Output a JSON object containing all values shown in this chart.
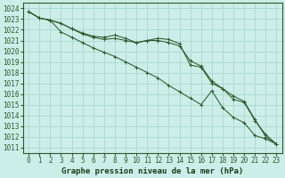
{
  "title": "Graphe pression niveau de la mer (hPa)",
  "bg_color": "#cceee8",
  "grid_color": "#a8d8d0",
  "line_color": "#2d5a2d",
  "x_ticks": [
    0,
    1,
    2,
    3,
    4,
    5,
    6,
    7,
    8,
    9,
    10,
    11,
    12,
    13,
    14,
    15,
    16,
    17,
    18,
    19,
    20,
    21,
    22,
    23
  ],
  "y_ticks": [
    1011,
    1012,
    1013,
    1014,
    1015,
    1016,
    1017,
    1018,
    1019,
    1020,
    1021,
    1022,
    1023,
    1024
  ],
  "xlim": [
    -0.5,
    23.5
  ],
  "ylim": [
    1010.5,
    1024.5
  ],
  "series": [
    [
      1023.7,
      1023.1,
      1022.9,
      1021.8,
      1021.3,
      1020.8,
      1020.3,
      1019.9,
      1019.5,
      1019.0,
      1018.5,
      1018.0,
      1017.5,
      1016.8,
      1016.2,
      1015.6,
      1015.0,
      1016.3,
      1014.7,
      1013.8,
      1013.3,
      1012.1,
      1011.8,
      1011.3
    ],
    [
      1023.7,
      1023.1,
      1022.9,
      1022.6,
      1022.1,
      1021.6,
      1021.3,
      1021.1,
      1021.2,
      1021.0,
      1020.8,
      1021.0,
      1021.0,
      1020.8,
      1020.5,
      1019.1,
      1018.6,
      1017.2,
      1016.5,
      1015.8,
      1015.3,
      1013.6,
      1012.0,
      1011.3
    ],
    [
      1023.7,
      1023.1,
      1022.9,
      1022.6,
      1022.1,
      1021.7,
      1021.4,
      1021.3,
      1021.5,
      1021.2,
      1020.8,
      1021.0,
      1021.2,
      1021.1,
      1020.7,
      1018.7,
      1018.5,
      1017.0,
      1016.5,
      1015.5,
      1015.2,
      1013.5,
      1012.2,
      1011.3
    ]
  ],
  "xlabel_fontsize": 6.5,
  "tick_fontsize": 5.5,
  "title_fontweight": "bold"
}
